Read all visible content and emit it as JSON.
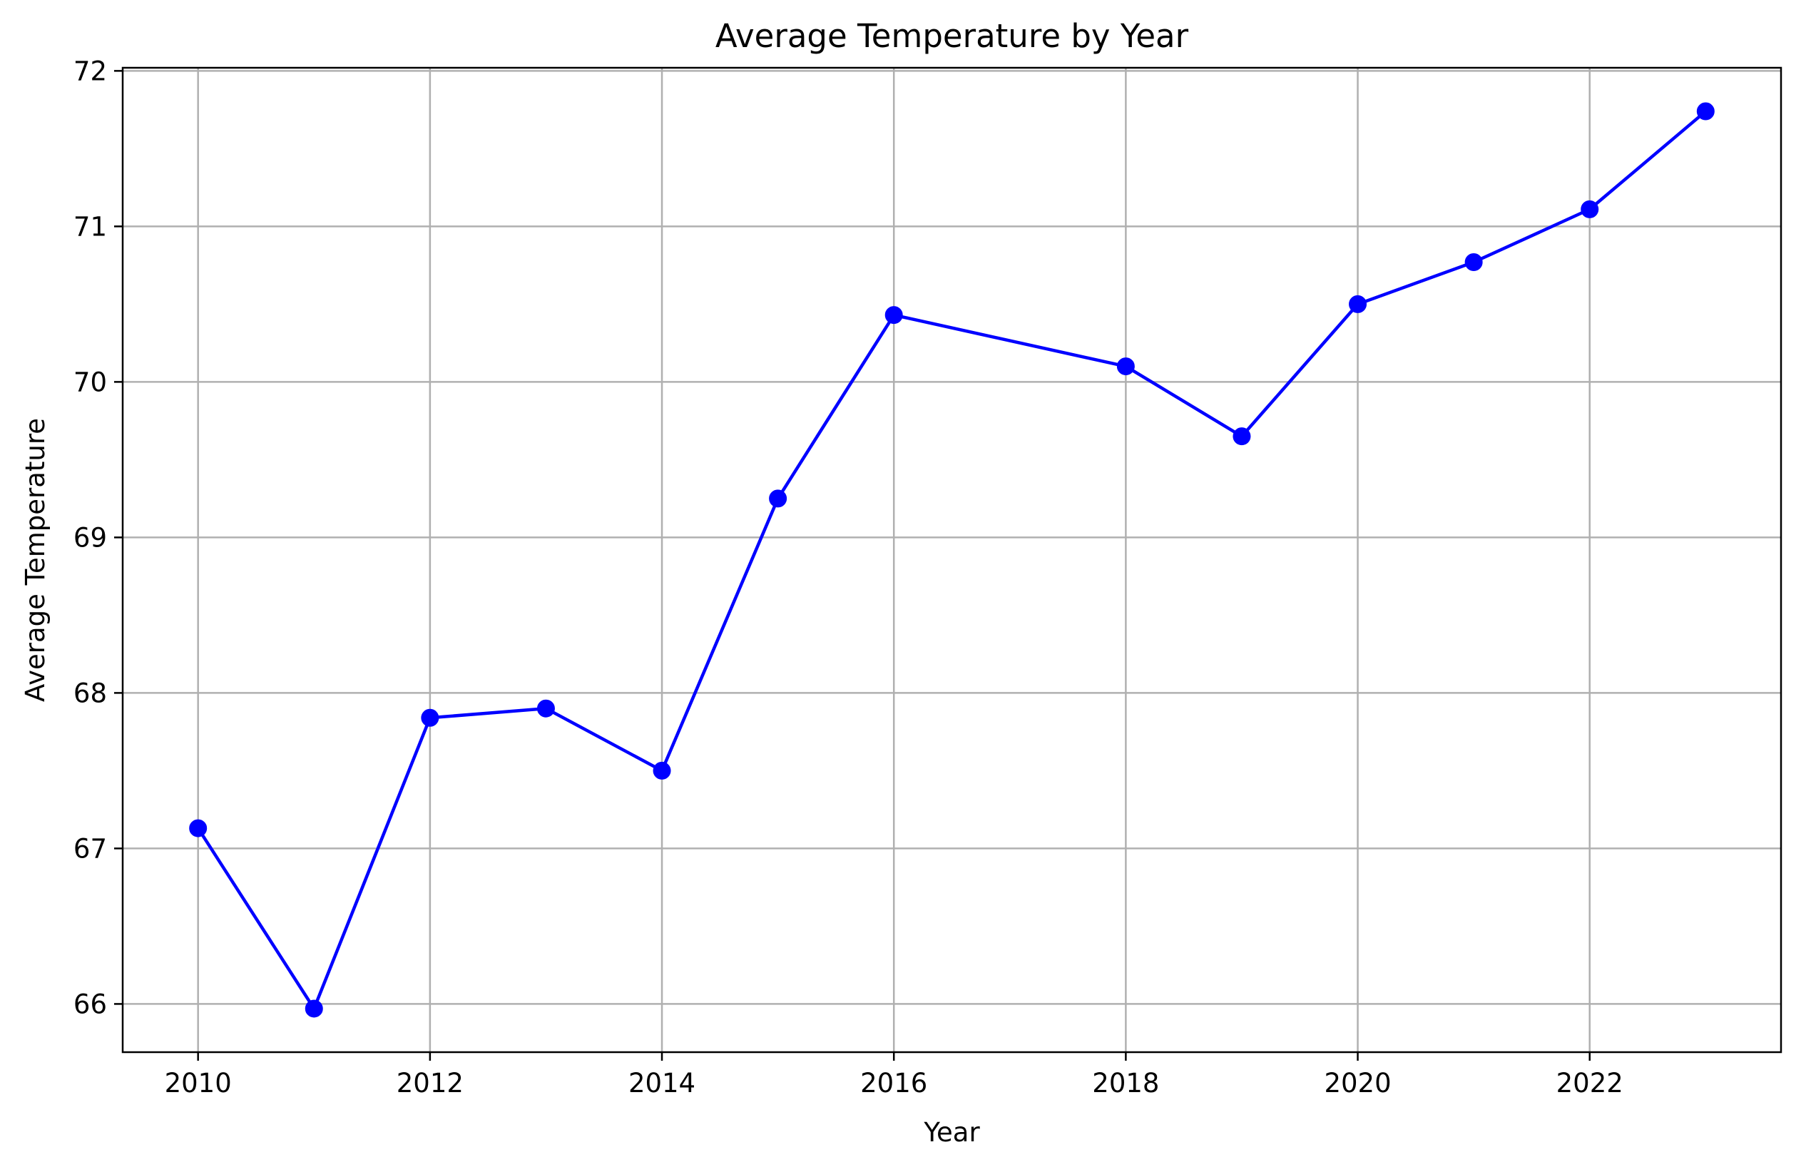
{
  "chart_data": {
    "type": "line",
    "title": "Average Temperature by Year",
    "xlabel": "Year",
    "ylabel": "Average Temperature",
    "xlim": [
      2009.35,
      2023.65
    ],
    "ylim": [
      65.69,
      72.02
    ],
    "xticks": [
      2010,
      2012,
      2014,
      2016,
      2018,
      2020,
      2022
    ],
    "yticks": [
      66,
      67,
      68,
      69,
      70,
      71,
      72
    ],
    "grid": true,
    "legend": "none",
    "series": [
      {
        "x": [
          2010,
          2011,
          2012,
          2013,
          2014,
          2015,
          2016,
          2018,
          2019,
          2020,
          2021,
          2022,
          2023
        ],
        "y": [
          67.13,
          65.97,
          67.84,
          67.9,
          67.5,
          69.25,
          70.43,
          70.1,
          69.65,
          70.5,
          70.77,
          71.11,
          71.74
        ],
        "color": "#0000ff",
        "marker": "circle"
      }
    ]
  }
}
